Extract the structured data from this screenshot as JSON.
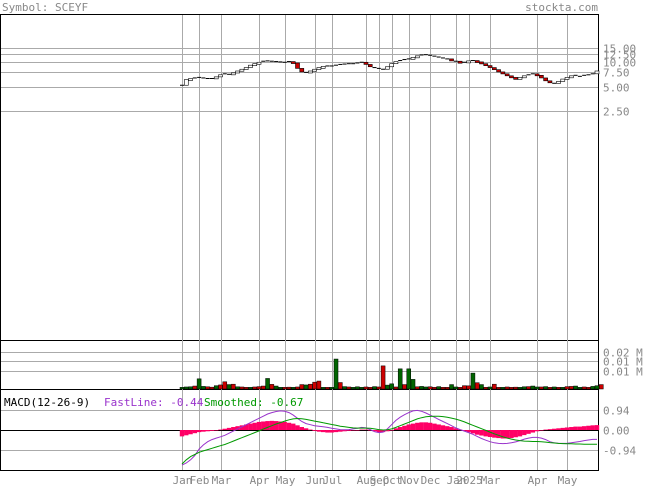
{
  "header": {
    "symbol_label": "Symbol: SCEYF",
    "site_label": "stockta.com"
  },
  "colors": {
    "up": "#006400",
    "down": "#cc0000",
    "grid": "#aaaaaa",
    "axis_text": "#888888",
    "macd_hist": "#ff0066",
    "fastline": "#9933cc",
    "smoothed": "#009900"
  },
  "chart_data": [
    {
      "type": "line",
      "name": "price",
      "scale": "log",
      "y_ticks": [
        "15.00",
        "12.50",
        "10.00",
        "7.50",
        "5.00",
        "2.50"
      ],
      "y_tick_values": [
        15,
        12.5,
        10,
        7.5,
        5,
        2.5
      ],
      "x_ticks": [
        "Jan",
        "Feb",
        "Mar",
        "Apr",
        "May",
        "Jun",
        "Jul",
        "Aug",
        "Sep",
        "Oct",
        "Nov",
        "Dec",
        "Jan",
        "2025",
        "Mar",
        "Apr",
        "May"
      ],
      "x_tick_pos": [
        0,
        4,
        9,
        18,
        24,
        31,
        35,
        43,
        46,
        49,
        53,
        58,
        64,
        67,
        72,
        83,
        90
      ],
      "closes": [
        5.2,
        6.1,
        6.3,
        6.4,
        6.5,
        6.4,
        6.3,
        6.3,
        6.6,
        7.0,
        7.2,
        7.1,
        7.4,
        7.8,
        8.2,
        8.6,
        9.2,
        9.6,
        10.0,
        10.3,
        10.4,
        10.3,
        10.2,
        10.1,
        10.0,
        10.2,
        9.8,
        8.4,
        7.6,
        7.5,
        7.8,
        8.2,
        8.6,
        8.9,
        9.0,
        9.0,
        9.2,
        9.4,
        9.5,
        9.6,
        9.6,
        9.8,
        10.0,
        9.4,
        8.8,
        8.6,
        8.4,
        8.2,
        8.8,
        9.6,
        10.2,
        10.5,
        10.8,
        11.0,
        11.5,
        12.0,
        12.3,
        12.4,
        12.2,
        11.9,
        11.6,
        11.3,
        11.0,
        10.6,
        10.3,
        10.0,
        10.0,
        10.4,
        10.5,
        10.1,
        9.6,
        9.1,
        8.6,
        8.1,
        7.6,
        7.2,
        6.8,
        6.5,
        6.3,
        6.5,
        6.8,
        7.0,
        7.2,
        6.9,
        6.4,
        5.9,
        5.6,
        5.5,
        5.8,
        6.2,
        6.5,
        6.8,
        6.9,
        6.7,
        6.9,
        7.0,
        7.2,
        7.8
      ]
    },
    {
      "type": "bar",
      "name": "volume",
      "y_ticks": [
        "0.02 M",
        "0.01 M",
        "0.01 M"
      ],
      "y_tick_values": [
        0.02,
        0.015,
        0.01
      ],
      "values": [
        0.0009,
        0.0011,
        0.0012,
        0.0016,
        0.0055,
        0.0014,
        0.0012,
        0.001,
        0.0018,
        0.0022,
        0.0039,
        0.0024,
        0.0026,
        0.0012,
        0.0011,
        0.0009,
        0.0009,
        0.0011,
        0.0013,
        0.0016,
        0.0057,
        0.0025,
        0.0016,
        0.0009,
        0.0009,
        0.001,
        0.0009,
        0.0011,
        0.0024,
        0.0022,
        0.0026,
        0.0037,
        0.0043,
        0.0009,
        0.0009,
        0.0009,
        0.0162,
        0.0035,
        0.0013,
        0.0011,
        0.0009,
        0.0012,
        0.0009,
        0.0011,
        0.0009,
        0.0013,
        0.0011,
        0.0125,
        0.0021,
        0.0028,
        0.0011,
        0.0109,
        0.0024,
        0.0109,
        0.0052,
        0.0012,
        0.0014,
        0.0011,
        0.0012,
        0.0009,
        0.0013,
        0.0009,
        0.0009,
        0.0024,
        0.0011,
        0.0009,
        0.0018,
        0.0017,
        0.0086,
        0.0034,
        0.0024,
        0.0009,
        0.0011,
        0.0026,
        0.0009,
        0.0009,
        0.0011,
        0.0009,
        0.001,
        0.0009,
        0.0012,
        0.0013,
        0.0016,
        0.0011,
        0.0011,
        0.0013,
        0.0009,
        0.0011,
        0.0009,
        0.0009,
        0.0013,
        0.0014,
        0.0016,
        0.0009,
        0.0011,
        0.0009,
        0.0014,
        0.0018,
        0.0024
      ],
      "up": [
        true,
        true,
        true,
        false,
        true,
        true,
        false,
        false,
        true,
        false,
        false,
        true,
        false,
        true,
        false,
        false,
        true,
        false,
        false,
        false,
        true,
        false,
        true,
        true,
        false,
        false,
        true,
        false,
        false,
        true,
        false,
        false,
        false,
        true,
        false,
        true,
        true,
        false,
        true,
        false,
        true,
        true,
        true,
        false,
        false,
        true,
        false,
        false,
        true,
        true,
        false,
        true,
        false,
        true,
        true,
        false,
        true,
        true,
        false,
        false,
        true,
        false,
        false,
        true,
        true,
        false,
        false,
        false,
        true,
        false,
        true,
        false,
        true,
        false,
        false,
        true,
        false,
        false,
        false,
        true,
        true,
        false,
        true,
        true,
        false,
        true,
        false,
        true,
        false,
        true,
        false,
        false,
        true,
        true,
        false,
        false,
        true,
        true
      ]
    },
    {
      "type": "line",
      "name": "macd",
      "legend_title": "MACD(12-26-9)",
      "fastline_label": "FastLine: -0.44",
      "smoothed_label": "Smoothed: -0.67",
      "y_ticks": [
        "0.94",
        "0.00",
        "-0.94"
      ],
      "y_tick_values": [
        0.94,
        0,
        -0.94
      ],
      "fast": [
        -1.65,
        -1.55,
        -1.4,
        -1.2,
        -0.9,
        -0.7,
        -0.55,
        -0.45,
        -0.38,
        -0.32,
        -0.25,
        -0.15,
        -0.05,
        0.05,
        0.15,
        0.25,
        0.35,
        0.45,
        0.55,
        0.65,
        0.75,
        0.82,
        0.87,
        0.9,
        0.88,
        0.82,
        0.7,
        0.55,
        0.4,
        0.3,
        0.25,
        0.2,
        0.18,
        0.15,
        0.12,
        0.08,
        0.05,
        0.02,
        0.01,
        0.02,
        0.05,
        0.08,
        0.12,
        0.1,
        0.02,
        -0.08,
        -0.12,
        -0.1,
        0.05,
        0.25,
        0.45,
        0.6,
        0.72,
        0.82,
        0.9,
        0.92,
        0.88,
        0.8,
        0.7,
        0.6,
        0.5,
        0.4,
        0.3,
        0.2,
        0.1,
        0.02,
        -0.05,
        -0.12,
        -0.2,
        -0.3,
        -0.4,
        -0.48,
        -0.55,
        -0.6,
        -0.63,
        -0.64,
        -0.63,
        -0.6,
        -0.56,
        -0.5,
        -0.43,
        -0.38,
        -0.35,
        -0.35,
        -0.38,
        -0.45,
        -0.55,
        -0.6,
        -0.63,
        -0.63,
        -0.62,
        -0.6,
        -0.57,
        -0.54,
        -0.5,
        -0.47,
        -0.44,
        -0.44
      ],
      "smoothed": [
        -1.6,
        -1.4,
        -1.25,
        -1.15,
        -1.05,
        -0.98,
        -0.92,
        -0.86,
        -0.8,
        -0.74,
        -0.68,
        -0.6,
        -0.52,
        -0.44,
        -0.36,
        -0.28,
        -0.2,
        -0.12,
        -0.04,
        0.04,
        0.12,
        0.2,
        0.28,
        0.35,
        0.42,
        0.48,
        0.52,
        0.54,
        0.53,
        0.5,
        0.46,
        0.42,
        0.38,
        0.34,
        0.3,
        0.26,
        0.22,
        0.18,
        0.15,
        0.12,
        0.1,
        0.09,
        0.09,
        0.09,
        0.08,
        0.05,
        0.02,
        0.0,
        0.01,
        0.05,
        0.12,
        0.2,
        0.28,
        0.36,
        0.44,
        0.52,
        0.58,
        0.62,
        0.64,
        0.65,
        0.65,
        0.63,
        0.6,
        0.56,
        0.51,
        0.45,
        0.38,
        0.3,
        0.22,
        0.14,
        0.06,
        -0.02,
        -0.1,
        -0.18,
        -0.25,
        -0.32,
        -0.38,
        -0.43,
        -0.47,
        -0.5,
        -0.52,
        -0.53,
        -0.54,
        -0.54,
        -0.55,
        -0.57,
        -0.59,
        -0.61,
        -0.63,
        -0.64,
        -0.65,
        -0.65,
        -0.66,
        -0.66,
        -0.67,
        -0.67,
        -0.67,
        -0.67
      ],
      "histogram": [
        -0.3,
        -0.25,
        -0.2,
        -0.15,
        -0.1,
        -0.08,
        -0.06,
        -0.04,
        -0.02,
        0.02,
        0.06,
        0.1,
        0.14,
        0.18,
        0.22,
        0.26,
        0.3,
        0.34,
        0.38,
        0.4,
        0.42,
        0.43,
        0.42,
        0.4,
        0.38,
        0.34,
        0.3,
        0.22,
        0.14,
        0.08,
        0.02,
        -0.04,
        -0.08,
        -0.1,
        -0.12,
        -0.12,
        -0.1,
        -0.08,
        -0.06,
        -0.04,
        -0.02,
        0.0,
        0.02,
        0.02,
        -0.02,
        -0.06,
        -0.1,
        -0.1,
        -0.06,
        0.0,
        0.08,
        0.14,
        0.2,
        0.26,
        0.3,
        0.34,
        0.36,
        0.36,
        0.34,
        0.3,
        0.26,
        0.22,
        0.18,
        0.14,
        0.08,
        0.02,
        -0.04,
        -0.1,
        -0.16,
        -0.22,
        -0.26,
        -0.3,
        -0.33,
        -0.36,
        -0.38,
        -0.4,
        -0.4,
        -0.38,
        -0.34,
        -0.3,
        -0.24,
        -0.18,
        -0.12,
        -0.06,
        -0.02,
        0.02,
        0.04,
        0.06,
        0.08,
        0.1,
        0.12,
        0.14,
        0.16,
        0.16,
        0.18,
        0.2,
        0.22,
        0.23
      ]
    }
  ]
}
